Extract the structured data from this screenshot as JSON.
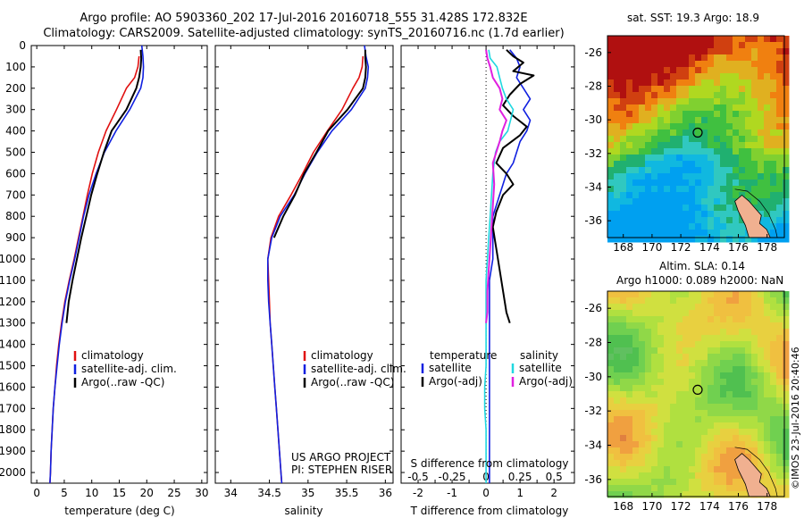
{
  "title": {
    "line1": "Argo profile: AO 5903360_202 17-Jul-2016 20160718_555 31.428S 172.832E",
    "line2": "Climatology: CARS2009. Satellite-adjusted climatology: synTS_20160716.nc (1.7d earlier)"
  },
  "colors": {
    "climatology": "#e01010",
    "satellite": "#1020e0",
    "argo": "#000000",
    "sat_s": "#20d8e0",
    "argo_s": "#e020e0"
  },
  "depth_ticks": [
    0,
    100,
    200,
    300,
    400,
    500,
    600,
    700,
    800,
    900,
    1000,
    1100,
    1200,
    1300,
    1400,
    1500,
    1600,
    1700,
    1800,
    1900,
    2000
  ],
  "temp_panel": {
    "xlabel": "temperature (deg C)",
    "xticks": [
      0,
      5,
      10,
      15,
      20,
      25,
      30
    ],
    "legend": [
      {
        "color": "#e01010",
        "label": "climatology"
      },
      {
        "color": "#1020e0",
        "label": "satellite-adj. clim."
      },
      {
        "color": "#000000",
        "label": "Argo(..raw -QC)"
      }
    ]
  },
  "sal_panel": {
    "xlabel": "salinity",
    "xticks": [
      34,
      34.5,
      35,
      35.5,
      36
    ],
    "xtick_labels": [
      "34",
      "34.5",
      "35",
      "35.5",
      "36"
    ],
    "legend": [
      {
        "color": "#e01010",
        "label": "climatology"
      },
      {
        "color": "#1020e0",
        "label": "satellite-adj. clim."
      },
      {
        "color": "#000000",
        "label": "Argo(..raw -QC)"
      }
    ],
    "note1": "US ARGO PROJECT",
    "note2": "PI: STEPHEN RISER"
  },
  "diff_panel": {
    "xlabel": "T difference from climatology",
    "xticks": [
      -2,
      -1.5,
      -1,
      -0.5,
      0,
      0.5,
      1,
      1.5,
      2
    ],
    "xtick_labels": [
      "-2",
      "",
      "-1",
      "",
      "0",
      "",
      "1",
      "",
      "2"
    ],
    "s_axis_label": "S difference from climatology",
    "s_ticks": [
      -0.5,
      -0.25,
      0,
      0.25,
      0.5
    ],
    "s_tick_labels": [
      "-0.5",
      "-0.25",
      "0",
      "0.25",
      "0.5"
    ],
    "temp_header": "temperature",
    "sal_header": "salinity",
    "legend_t": [
      {
        "color": "#1020e0",
        "label": "satellite"
      },
      {
        "color": "#000000",
        "label": "Argo(-adj)"
      }
    ],
    "legend_s": [
      {
        "color": "#20d8e0",
        "label": "satellite"
      },
      {
        "color": "#e020e0",
        "label": "Argo(-adj)"
      }
    ]
  },
  "map_top": {
    "title": "sat. SST: 19.3 Argo: 18.9",
    "yticks": [
      "-26",
      "-28",
      "-30",
      "-32",
      "-34",
      "-36"
    ],
    "xticks": [
      "168",
      "170",
      "172",
      "174",
      "176",
      "178"
    ]
  },
  "map_bottom": {
    "title1": "Altim. SLA: 0.14",
    "title2": "Argo h1000: 0.089 h2000: NaN",
    "yticks": [
      "-26",
      "-28",
      "-30",
      "-32",
      "-34",
      "-36"
    ],
    "xticks": [
      "168",
      "170",
      "172",
      "174",
      "176",
      "178"
    ]
  },
  "stamp": "©IMOS 23-Jul-2016 20:40:46",
  "chart_data": [
    {
      "type": "line",
      "title": "",
      "xlabel": "temperature (deg C)",
      "ylabel": "",
      "xlim": [
        -1,
        31
      ],
      "ylim": [
        2050,
        0
      ],
      "series": [
        {
          "name": "climatology",
          "color": "#e01010",
          "points": [
            [
              18.6,
              50
            ],
            [
              18.4,
              100
            ],
            [
              17.8,
              150
            ],
            [
              16.3,
              200
            ],
            [
              14.5,
              300
            ],
            [
              12.6,
              400
            ],
            [
              11.2,
              500
            ],
            [
              10.1,
              600
            ],
            [
              9.2,
              700
            ],
            [
              8.4,
              800
            ],
            [
              7.6,
              900
            ],
            [
              6.8,
              1000
            ],
            [
              5.9,
              1100
            ],
            [
              5.1,
              1200
            ],
            [
              4.5,
              1300
            ],
            [
              4.0,
              1400
            ],
            [
              3.6,
              1500
            ],
            [
              3.3,
              1600
            ],
            [
              3.0,
              1700
            ],
            [
              2.8,
              1800
            ],
            [
              2.6,
              1900
            ],
            [
              2.5,
              2000
            ],
            [
              2.4,
              2050
            ]
          ]
        },
        {
          "name": "satellite-adj. clim.",
          "color": "#1020e0",
          "points": [
            [
              19.1,
              0
            ],
            [
              19.3,
              50
            ],
            [
              19.4,
              100
            ],
            [
              19.3,
              150
            ],
            [
              18.9,
              200
            ],
            [
              16.9,
              300
            ],
            [
              14.4,
              400
            ],
            [
              12.3,
              500
            ],
            [
              10.8,
              600
            ],
            [
              9.5,
              700
            ],
            [
              8.5,
              800
            ],
            [
              7.7,
              900
            ],
            [
              6.9,
              1000
            ],
            [
              6.0,
              1100
            ],
            [
              5.2,
              1200
            ],
            [
              4.6,
              1300
            ],
            [
              4.1,
              1400
            ],
            [
              3.7,
              1500
            ],
            [
              3.3,
              1600
            ],
            [
              3.0,
              1700
            ],
            [
              2.8,
              1800
            ],
            [
              2.6,
              1900
            ],
            [
              2.5,
              2000
            ],
            [
              2.4,
              2050
            ]
          ]
        },
        {
          "name": "Argo(..raw -QC)",
          "color": "#000000",
          "points": [
            [
              18.9,
              20
            ],
            [
              19.0,
              60
            ],
            [
              18.9,
              100
            ],
            [
              18.6,
              150
            ],
            [
              18.1,
              200
            ],
            [
              16.3,
              300
            ],
            [
              13.6,
              400
            ],
            [
              12.2,
              500
            ],
            [
              11.0,
              600
            ],
            [
              9.9,
              700
            ],
            [
              9.0,
              800
            ],
            [
              8.1,
              900
            ],
            [
              7.3,
              1000
            ],
            [
              6.5,
              1100
            ],
            [
              5.8,
              1200
            ],
            [
              5.4,
              1300
            ]
          ]
        }
      ]
    },
    {
      "type": "line",
      "title": "",
      "xlabel": "salinity",
      "ylabel": "",
      "xlim": [
        33.8,
        36.1
      ],
      "ylim": [
        2050,
        0
      ],
      "series": [
        {
          "name": "climatology",
          "color": "#e01010",
          "points": [
            [
              35.71,
              50
            ],
            [
              35.7,
              100
            ],
            [
              35.66,
              150
            ],
            [
              35.58,
              200
            ],
            [
              35.44,
              300
            ],
            [
              35.25,
              400
            ],
            [
              35.07,
              500
            ],
            [
              34.93,
              600
            ],
            [
              34.78,
              700
            ],
            [
              34.62,
              800
            ],
            [
              34.52,
              900
            ],
            [
              34.48,
              1000
            ],
            [
              34.49,
              1100
            ],
            [
              34.5,
              1200
            ],
            [
              34.51,
              1300
            ],
            [
              34.53,
              1400
            ],
            [
              34.55,
              1500
            ],
            [
              34.57,
              1600
            ],
            [
              34.59,
              1700
            ],
            [
              34.61,
              1800
            ],
            [
              34.63,
              1900
            ],
            [
              34.65,
              2000
            ],
            [
              34.66,
              2050
            ]
          ]
        },
        {
          "name": "satellite-adj. clim.",
          "color": "#1020e0",
          "points": [
            [
              35.73,
              0
            ],
            [
              35.75,
              50
            ],
            [
              35.78,
              100
            ],
            [
              35.77,
              150
            ],
            [
              35.74,
              200
            ],
            [
              35.56,
              300
            ],
            [
              35.31,
              400
            ],
            [
              35.12,
              500
            ],
            [
              34.96,
              600
            ],
            [
              34.82,
              700
            ],
            [
              34.64,
              800
            ],
            [
              34.53,
              900
            ],
            [
              34.48,
              1000
            ],
            [
              34.48,
              1100
            ],
            [
              34.49,
              1200
            ],
            [
              34.51,
              1300
            ],
            [
              34.53,
              1400
            ],
            [
              34.55,
              1500
            ],
            [
              34.57,
              1600
            ],
            [
              34.59,
              1700
            ],
            [
              34.61,
              1800
            ],
            [
              34.63,
              1900
            ],
            [
              34.65,
              2000
            ],
            [
              34.66,
              2050
            ]
          ]
        },
        {
          "name": "Argo(..raw -QC)",
          "color": "#000000",
          "points": [
            [
              35.74,
              20
            ],
            [
              35.74,
              60
            ],
            [
              35.75,
              100
            ],
            [
              35.74,
              150
            ],
            [
              35.71,
              200
            ],
            [
              35.51,
              300
            ],
            [
              35.26,
              400
            ],
            [
              35.11,
              500
            ],
            [
              34.95,
              600
            ],
            [
              34.83,
              700
            ],
            [
              34.68,
              800
            ],
            [
              34.56,
              900
            ]
          ]
        }
      ]
    },
    {
      "type": "line",
      "title": "",
      "xlabel": "T difference from climatology",
      "ylabel": "",
      "xlim": [
        -2.5,
        2.6
      ],
      "ylim": [
        2050,
        0
      ],
      "series": [
        {
          "name": "satellite",
          "axis": "T",
          "color": "#1020e0",
          "points": [
            [
              0.7,
              20
            ],
            [
              0.9,
              60
            ],
            [
              1.0,
              100
            ],
            [
              0.9,
              150
            ],
            [
              1.1,
              200
            ],
            [
              1.3,
              250
            ],
            [
              1.1,
              300
            ],
            [
              1.3,
              350
            ],
            [
              1.2,
              400
            ],
            [
              1.0,
              450
            ],
            [
              0.9,
              500
            ],
            [
              0.8,
              550
            ],
            [
              0.6,
              600
            ],
            [
              0.5,
              650
            ],
            [
              0.4,
              700
            ],
            [
              0.3,
              750
            ],
            [
              0.2,
              800
            ],
            [
              0.2,
              900
            ],
            [
              0.2,
              1000
            ],
            [
              0.1,
              1100
            ],
            [
              0.1,
              1200
            ],
            [
              0.1,
              1300
            ],
            [
              0.1,
              1400
            ],
            [
              0.1,
              1500
            ],
            [
              0.1,
              1600
            ],
            [
              0.1,
              1700
            ],
            [
              0.1,
              1800
            ],
            [
              0.1,
              1900
            ],
            [
              0.1,
              2000
            ],
            [
              0.1,
              2050
            ]
          ]
        },
        {
          "name": "Argo(-adj)",
          "axis": "T",
          "color": "#000000",
          "points": [
            [
              0.6,
              20
            ],
            [
              0.8,
              50
            ],
            [
              1.1,
              80
            ],
            [
              0.8,
              120
            ],
            [
              1.4,
              140
            ],
            [
              1.0,
              180
            ],
            [
              0.7,
              230
            ],
            [
              0.5,
              280
            ],
            [
              0.8,
              330
            ],
            [
              1.2,
              380
            ],
            [
              1.0,
              420
            ],
            [
              0.5,
              480
            ],
            [
              0.3,
              550
            ],
            [
              0.6,
              600
            ],
            [
              0.8,
              650
            ],
            [
              0.5,
              700
            ],
            [
              0.3,
              780
            ],
            [
              0.2,
              850
            ],
            [
              0.3,
              950
            ],
            [
              0.4,
              1050
            ],
            [
              0.5,
              1150
            ],
            [
              0.6,
              1250
            ],
            [
              0.7,
              1300
            ]
          ]
        },
        {
          "name": "satellite",
          "axis": "S",
          "color": "#20d8e0",
          "points": [
            [
              0.02,
              20
            ],
            [
              0.03,
              60
            ],
            [
              0.08,
              100
            ],
            [
              0.1,
              150
            ],
            [
              0.12,
              200
            ],
            [
              0.15,
              250
            ],
            [
              0.2,
              300
            ],
            [
              0.18,
              350
            ],
            [
              0.16,
              400
            ],
            [
              0.1,
              450
            ],
            [
              0.07,
              500
            ],
            [
              0.05,
              600
            ],
            [
              0.04,
              700
            ],
            [
              0.03,
              800
            ],
            [
              0.02,
              900
            ],
            [
              0.01,
              1000
            ],
            [
              0.0,
              1100
            ],
            [
              0.0,
              1200
            ],
            [
              0.0,
              1300
            ],
            [
              0.0,
              1400
            ],
            [
              0.0,
              1500
            ],
            [
              -0.01,
              1600
            ],
            [
              -0.01,
              1700
            ],
            [
              0.0,
              1800
            ],
            [
              0.0,
              1900
            ],
            [
              0.0,
              2000
            ],
            [
              0.0,
              2050
            ]
          ]
        },
        {
          "name": "Argo(-adj)",
          "axis": "S",
          "color": "#e020e0",
          "points": [
            [
              0.0,
              20
            ],
            [
              0.01,
              60
            ],
            [
              0.03,
              100
            ],
            [
              0.05,
              150
            ],
            [
              0.1,
              200
            ],
            [
              0.12,
              250
            ],
            [
              0.1,
              300
            ],
            [
              0.15,
              350
            ],
            [
              0.12,
              400
            ],
            [
              0.1,
              450
            ],
            [
              0.05,
              550
            ],
            [
              0.06,
              650
            ],
            [
              0.05,
              750
            ],
            [
              0.04,
              850
            ],
            [
              0.03,
              950
            ],
            [
              0.02,
              1050
            ],
            [
              0.01,
              1150
            ],
            [
              0.01,
              1250
            ],
            [
              0.0,
              1300
            ]
          ]
        }
      ]
    }
  ]
}
